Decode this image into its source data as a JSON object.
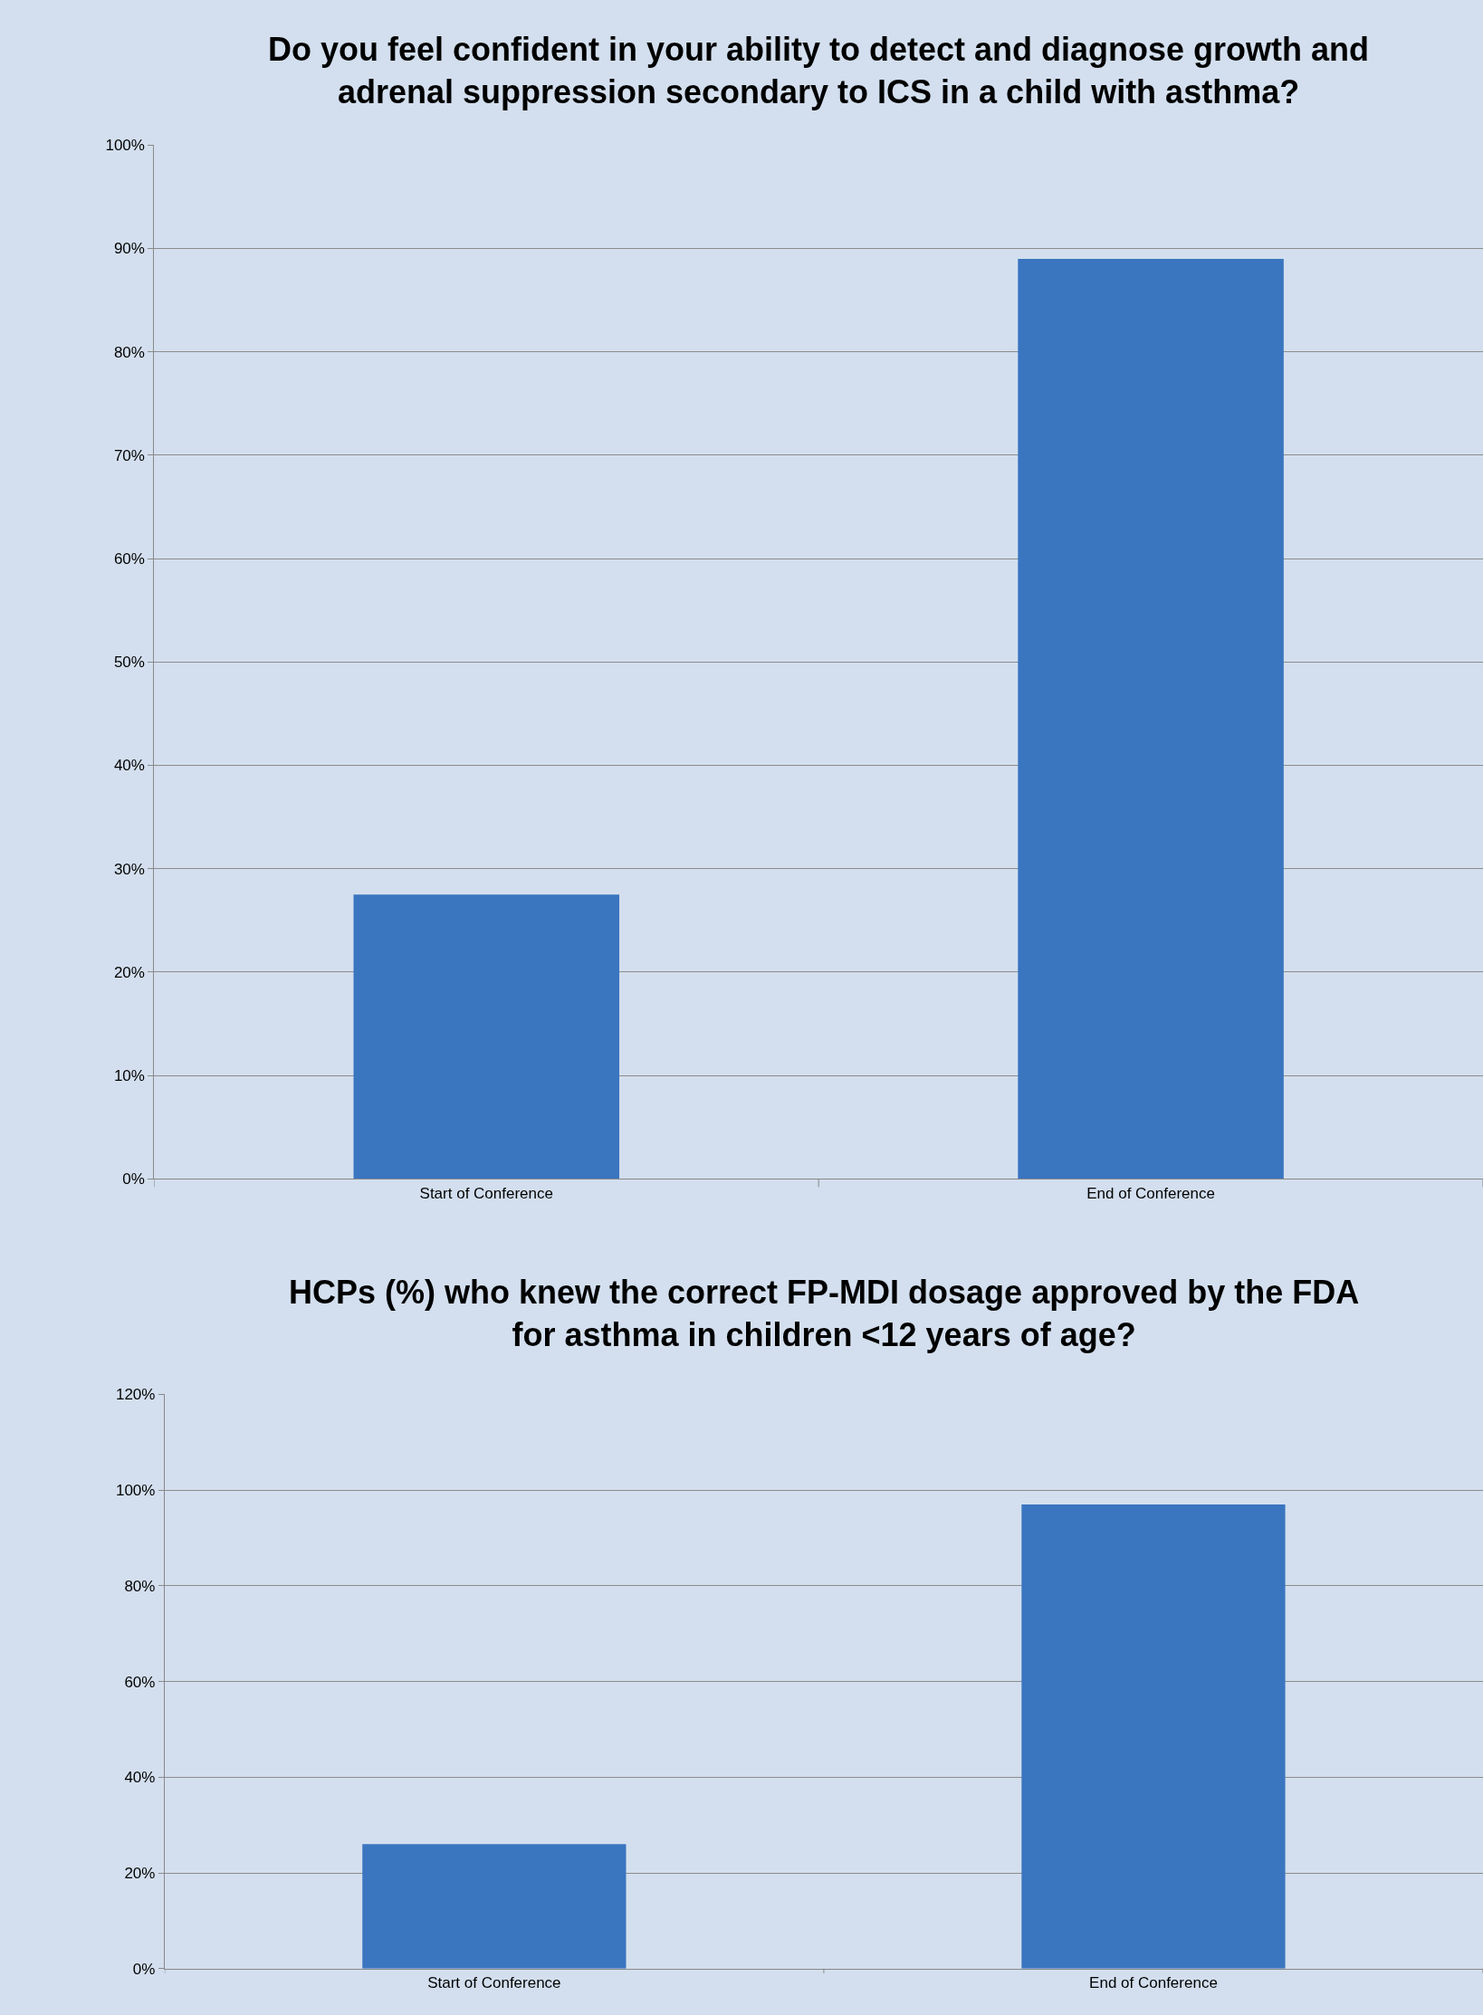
{
  "chart_data": [
    {
      "type": "bar",
      "title": "Do you feel confident in your ability to detect and diagnose growth and adrenal suppression secondary to ICS in a child with asthma?",
      "categories": [
        "Start of Conference",
        "End of Conference"
      ],
      "values": [
        27.5,
        89
      ],
      "color": "#3a75c0",
      "ylim": [
        0,
        100
      ],
      "yticks": [
        {
          "value": 0,
          "label": "0%"
        },
        {
          "value": 10,
          "label": "10%"
        },
        {
          "value": 20,
          "label": "20%"
        },
        {
          "value": 30,
          "label": "30%"
        },
        {
          "value": 40,
          "label": "40%"
        },
        {
          "value": 50,
          "label": "50%"
        },
        {
          "value": 60,
          "label": "60%"
        },
        {
          "value": 70,
          "label": "70%"
        },
        {
          "value": 80,
          "label": "80%"
        },
        {
          "value": 90,
          "label": "90%"
        },
        {
          "value": 100,
          "label": "100%"
        }
      ],
      "grid": "y"
    },
    {
      "type": "bar",
      "title": "HCPs (%) who knew the correct FP-MDI dosage approved by the FDA for asthma in children <12 years of age?",
      "categories": [
        "Start of Conference",
        "End of Conference"
      ],
      "values": [
        26,
        97
      ],
      "color": "#3a75c0",
      "ylim": [
        0,
        120
      ],
      "yticks": [
        {
          "value": 0,
          "label": "0%"
        },
        {
          "value": 20,
          "label": "20%"
        },
        {
          "value": 40,
          "label": "40%"
        },
        {
          "value": 60,
          "label": "60%"
        },
        {
          "value": 80,
          "label": "80%"
        },
        {
          "value": 100,
          "label": "100%"
        },
        {
          "value": 120,
          "label": "120%"
        }
      ],
      "grid": "y"
    }
  ]
}
